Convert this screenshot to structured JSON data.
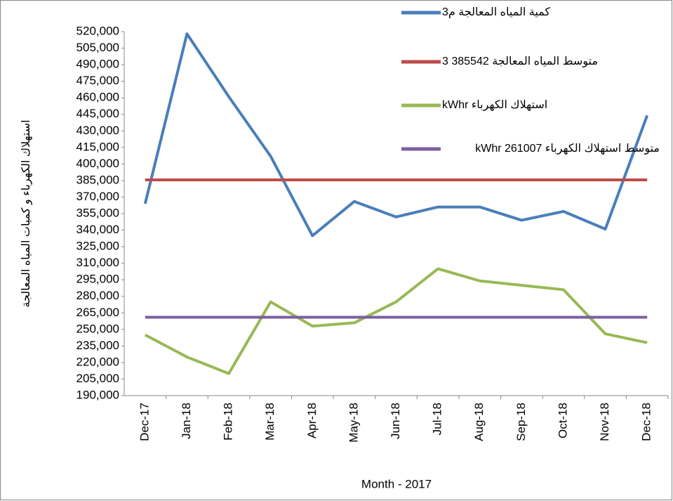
{
  "chart_data": {
    "type": "line",
    "x_label": "Month - 2017",
    "y_label": "استهلاك الكهرباء و كميات المياه المعالجة",
    "categories": [
      "Dec-17",
      "Jan-18",
      "Feb-18",
      "Mar-18",
      "Apr-18",
      "May-18",
      "Jun-18",
      "Jul-18",
      "Aug-18",
      "Sep-18",
      "Oct-18",
      "Nov-18",
      "Dec-18"
    ],
    "series": [
      {
        "name": "كمية المياه المعالجة م3",
        "color": "#4a7ebb",
        "values": [
          364000,
          518000,
          461000,
          407000,
          335000,
          366000,
          352000,
          361000,
          361000,
          349000,
          357000,
          341000,
          444000
        ]
      },
      {
        "name": "متوسط المياه المعالجة 385542 3",
        "color": "#be4b48",
        "values": [
          385542,
          385542,
          385542,
          385542,
          385542,
          385542,
          385542,
          385542,
          385542,
          385542,
          385542,
          385542,
          385542
        ]
      },
      {
        "name": "استهلاك الكهرباء kWhr",
        "color": "#98b954",
        "values": [
          245000,
          225000,
          210000,
          275000,
          253000,
          256000,
          275000,
          305000,
          294000,
          290000,
          286000,
          246000,
          238000
        ]
      },
      {
        "name": "متوسط استهلاك الكهرباء  kWhr 261007",
        "color": "#7d5fa0",
        "values": [
          261007,
          261007,
          261007,
          261007,
          261007,
          261007,
          261007,
          261007,
          261007,
          261007,
          261007,
          261007,
          261007
        ]
      }
    ],
    "ylim": [
      190000,
      520000
    ],
    "yticks": [
      {
        "value": 190000,
        "label": "190,000"
      },
      {
        "value": 205000,
        "label": "205,000"
      },
      {
        "value": 220000,
        "label": "220,000"
      },
      {
        "value": 235000,
        "label": "235,000"
      },
      {
        "value": 250000,
        "label": "250,000"
      },
      {
        "value": 265000,
        "label": "265,000"
      },
      {
        "value": 280000,
        "label": "280,000"
      },
      {
        "value": 295000,
        "label": "295,000"
      },
      {
        "value": 310000,
        "label": "310,000"
      },
      {
        "value": 325000,
        "label": "325,000"
      },
      {
        "value": 340000,
        "label": "340,000"
      },
      {
        "value": 355000,
        "label": "355,000"
      },
      {
        "value": 370000,
        "label": "370,000"
      },
      {
        "value": 385000,
        "label": "385,000"
      },
      {
        "value": 400000,
        "label": "400,000"
      },
      {
        "value": 415000,
        "label": "415,000"
      },
      {
        "value": 430000,
        "label": "430,000"
      },
      {
        "value": 445000,
        "label": "445,000"
      },
      {
        "value": 460000,
        "label": "460,000"
      },
      {
        "value": 475000,
        "label": "475,000"
      },
      {
        "value": 490000,
        "label": "490,000"
      },
      {
        "value": 505000,
        "label": "505,000"
      },
      {
        "value": 520000,
        "label": "520,000"
      }
    ],
    "grid": false
  }
}
